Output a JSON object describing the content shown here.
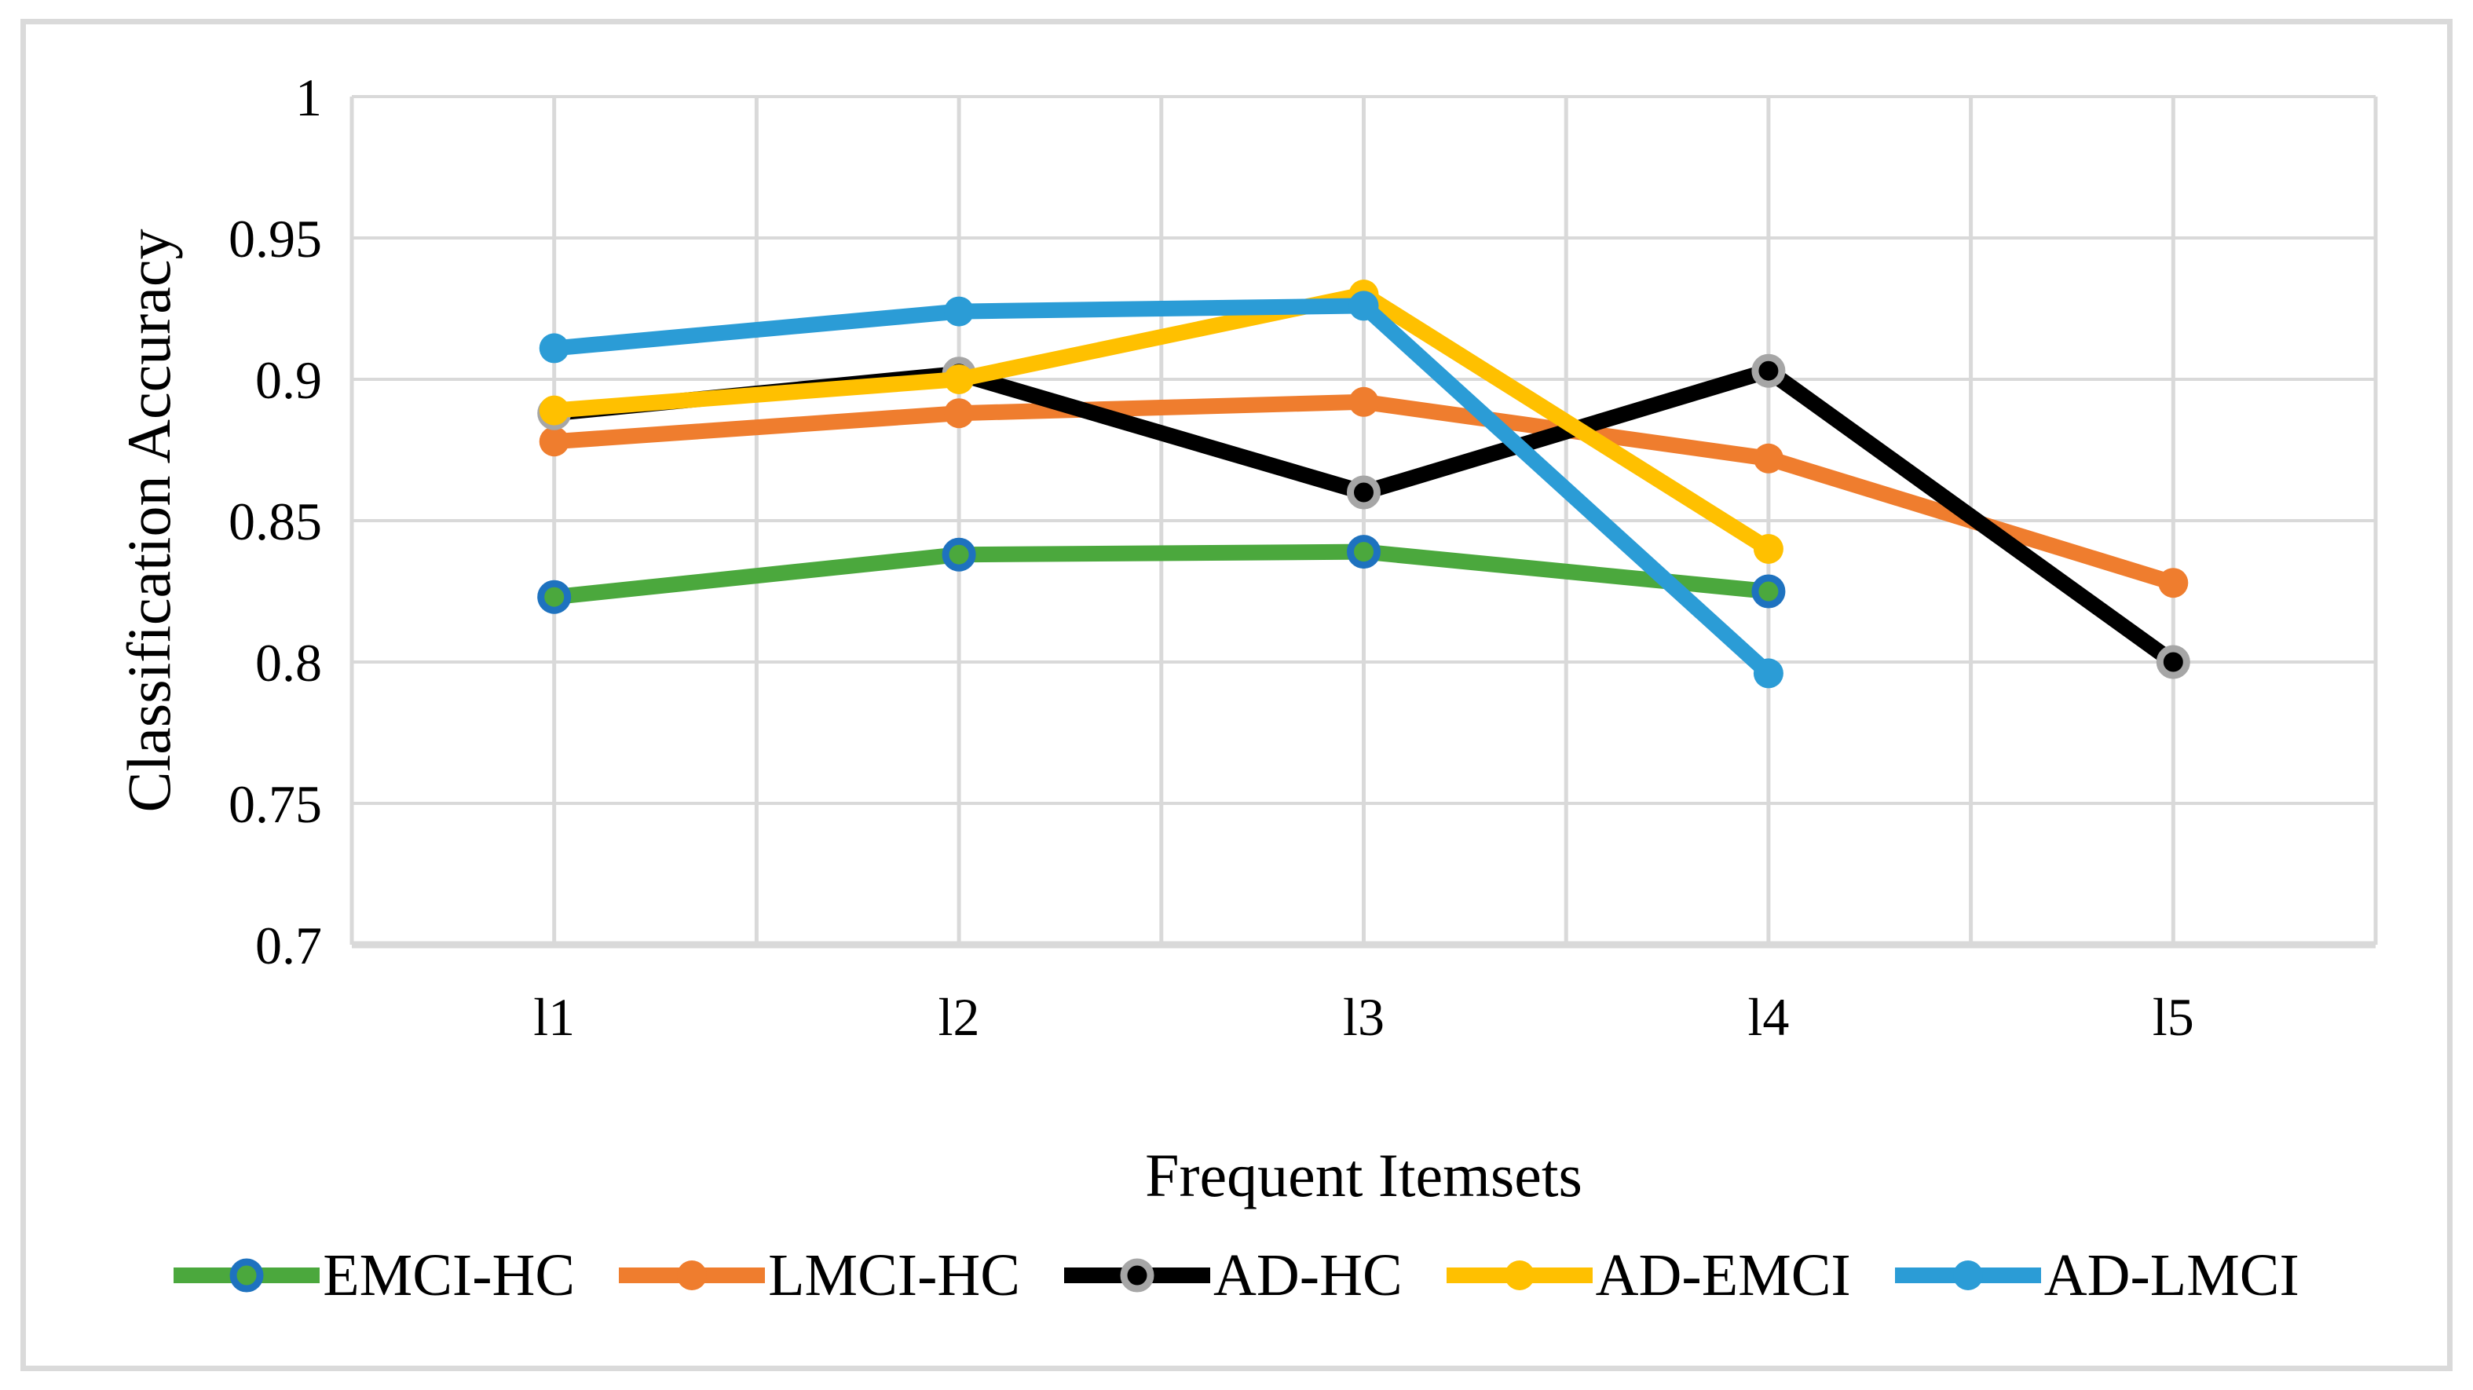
{
  "figure": {
    "background": "#FFFFFF",
    "border_color": "#DADADA",
    "grid_color": "#D9D9D9",
    "axis_line_color": "#D9D9D9"
  },
  "chart_data": {
    "type": "line",
    "title": "",
    "xlabel": "Frequent Itemsets",
    "ylabel": "Classification Accuracy",
    "categories": [
      "l1",
      "l2",
      "l3",
      "l4",
      "l5"
    ],
    "ylim": [
      0.7,
      1.0
    ],
    "ytick_step": 0.05,
    "yticks": [
      {
        "label": "1",
        "value": 1.0
      },
      {
        "label": "0.95",
        "value": 0.95
      },
      {
        "label": "0.9",
        "value": 0.9
      },
      {
        "label": "0.85",
        "value": 0.85
      },
      {
        "label": "0.8",
        "value": 0.8
      },
      {
        "label": "0.75",
        "value": 0.75
      },
      {
        "label": "0.7",
        "value": 0.7
      }
    ],
    "grid": true,
    "legend_position": "bottom",
    "series": [
      {
        "name": "EMCI-HC",
        "line_color": "#4BA83D",
        "marker_fill": "#4BA83D",
        "marker_ring": "#1E72BF",
        "values": [
          0.823,
          0.838,
          0.839,
          0.825,
          null
        ]
      },
      {
        "name": "LMCI-HC",
        "line_color": "#EF7D2E",
        "marker_fill": "#EF7D2E",
        "marker_ring": null,
        "values": [
          0.878,
          0.888,
          0.892,
          0.872,
          0.828
        ]
      },
      {
        "name": "AD-HC",
        "line_color": "#000000",
        "marker_fill": "#000000",
        "marker_ring": "#A6A6A6",
        "values": [
          0.888,
          0.902,
          0.86,
          0.903,
          0.8
        ]
      },
      {
        "name": "AD-EMCI",
        "line_color": "#FFC000",
        "marker_fill": "#FFC000",
        "marker_ring": null,
        "values": [
          0.889,
          0.9,
          0.93,
          0.84,
          null
        ]
      },
      {
        "name": "AD-LMCI",
        "line_color": "#2B9CD6",
        "marker_fill": "#2B9CD6",
        "marker_ring": null,
        "values": [
          0.911,
          0.924,
          0.926,
          0.796,
          null
        ]
      }
    ]
  }
}
